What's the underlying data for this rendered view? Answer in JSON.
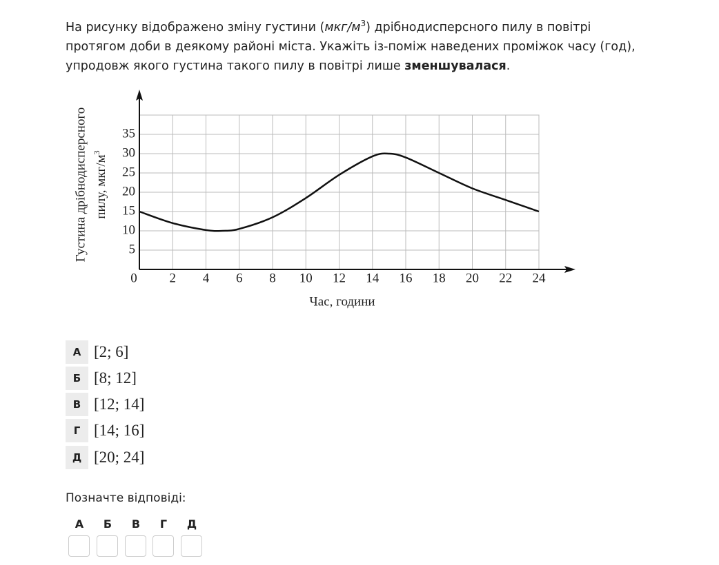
{
  "question": {
    "text_start": "На рисунку відображено зміну густини (",
    "unit": "мкг/м",
    "unit_sup": "3",
    "text_middle": ") дрібнодисперсного пилу в повітрі протягом доби в деякому районі міста. Укажіть із-поміж наведених проміжок часу (год), упродовж якого густина такого пилу в повітрі лише ",
    "emphasis": "зменшувалася",
    "text_end": "."
  },
  "chart_data": {
    "type": "line",
    "x": [
      0,
      2,
      4,
      5,
      6,
      8,
      10,
      12,
      14,
      15,
      16,
      18,
      20,
      22,
      24
    ],
    "values": [
      15,
      12,
      10.2,
      10,
      10.5,
      13.5,
      18.5,
      24.5,
      29.3,
      30,
      29,
      25,
      21,
      18,
      15
    ],
    "color": "#111111",
    "xlim": [
      0,
      24
    ],
    "ylim": [
      0,
      40
    ],
    "xticks": [
      0,
      2,
      4,
      6,
      8,
      10,
      12,
      14,
      16,
      18,
      20,
      22,
      24
    ],
    "yticks": [
      5,
      10,
      15,
      20,
      25,
      30,
      35
    ],
    "grid": true,
    "x_label": "Час, години",
    "y_label": [
      "Густина дрібнодисперсного",
      "пилу,  мкг/м"
    ],
    "y_label_sup": "3"
  },
  "options": [
    {
      "letter": "А",
      "text": "[2; 6]"
    },
    {
      "letter": "Б",
      "text": "[8; 12]"
    },
    {
      "letter": "В",
      "text": "[12; 14]"
    },
    {
      "letter": "Г",
      "text": "[14; 16]"
    },
    {
      "letter": "Д",
      "text": "[20; 24]"
    }
  ],
  "answer": {
    "prompt": "Позначте відповіді:",
    "letters": [
      "А",
      "Б",
      "В",
      "Г",
      "Д"
    ]
  }
}
